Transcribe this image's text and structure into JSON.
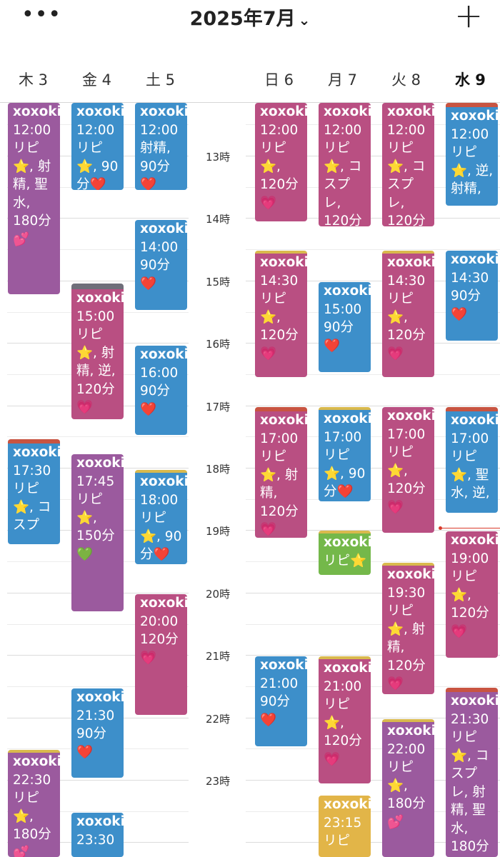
{
  "header": {
    "title": "2025年7月",
    "chevron": "⌄",
    "more": "•••",
    "add": "+"
  },
  "days": [
    {
      "label": "木 3",
      "today": false
    },
    {
      "label": "金 4",
      "today": false
    },
    {
      "label": "土 5",
      "today": false
    },
    {
      "label": "日 6",
      "today": false
    },
    {
      "label": "月 7",
      "today": false
    },
    {
      "label": "火 8",
      "today": false
    },
    {
      "label": "水 9",
      "today": true
    }
  ],
  "hours": [
    "13時",
    "14時",
    "15時",
    "16時",
    "17時",
    "18時",
    "19時",
    "20時",
    "21時",
    "22時",
    "23時"
  ],
  "events": [
    {
      "day": 0,
      "color": "purple",
      "title": "xoxoki",
      "lines": [
        "12:00",
        "リピ",
        "⭐, 射",
        "精, 聖",
        "水,",
        "180分",
        "💕"
      ]
    },
    {
      "day": 0,
      "color": "blue",
      "title": "xoxoki",
      "lines": [
        "17:30",
        "リピ",
        "⭐, コ",
        "スプ"
      ]
    },
    {
      "day": 0,
      "color": "purple",
      "title": "xoxoki",
      "lines": [
        "22:30",
        "リピ",
        "⭐,",
        "180分",
        "💕"
      ]
    },
    {
      "day": 1,
      "color": "blue",
      "title": "xoxoki",
      "lines": [
        "12:00",
        "リピ",
        "⭐, 90",
        "分❤️"
      ]
    },
    {
      "day": 1,
      "color": "pink",
      "title": "xoxoki",
      "lines": [
        "15:00",
        "リピ",
        "⭐, 射",
        "精, 逆,",
        "120分",
        "💗"
      ]
    },
    {
      "day": 1,
      "color": "purple",
      "title": "xoxoki",
      "lines": [
        "17:45",
        "リピ",
        "⭐,",
        "150分",
        "💚"
      ]
    },
    {
      "day": 1,
      "color": "blue",
      "title": "xoxoki",
      "lines": [
        "21:30",
        "90分",
        "❤️"
      ]
    },
    {
      "day": 1,
      "color": "blue",
      "title": "xoxoki",
      "lines": [
        "23:30"
      ]
    },
    {
      "day": 2,
      "color": "blue",
      "title": "xoxoki",
      "lines": [
        "12:00",
        "射精,",
        "90分",
        "❤️"
      ]
    },
    {
      "day": 2,
      "color": "blue",
      "title": "xoxoki",
      "lines": [
        "14:00",
        "90分",
        "❤️"
      ]
    },
    {
      "day": 2,
      "color": "blue",
      "title": "xoxoki",
      "lines": [
        "16:00",
        "90分",
        "❤️"
      ]
    },
    {
      "day": 2,
      "color": "blue",
      "title": "xoxoki",
      "lines": [
        "18:00",
        "リピ",
        "⭐, 90",
        "分❤️"
      ]
    },
    {
      "day": 2,
      "color": "pink",
      "title": "xoxoki",
      "lines": [
        "20:00",
        "120分",
        "💗"
      ]
    },
    {
      "day": 3,
      "color": "pink",
      "title": "xoxoki",
      "lines": [
        "12:00",
        "リピ",
        "⭐,",
        "120分",
        "💗"
      ]
    },
    {
      "day": 3,
      "color": "pink",
      "title": "xoxoki",
      "lines": [
        "14:30",
        "リピ",
        "⭐,",
        "120分",
        "💗"
      ]
    },
    {
      "day": 3,
      "color": "pink",
      "title": "xoxoki",
      "lines": [
        "17:00",
        "リピ",
        "⭐, 射",
        "精,",
        "120分",
        "💗"
      ]
    },
    {
      "day": 3,
      "color": "blue",
      "title": "xoxoki",
      "lines": [
        "21:00",
        "90分",
        "❤️"
      ]
    },
    {
      "day": 4,
      "color": "pink",
      "title": "xoxoki",
      "lines": [
        "12:00",
        "リピ",
        "⭐, コ",
        "スプ",
        "レ,",
        "120分"
      ]
    },
    {
      "day": 4,
      "color": "blue",
      "title": "xoxoki",
      "lines": [
        "15:00",
        "90分",
        "❤️"
      ]
    },
    {
      "day": 4,
      "color": "blue",
      "title": "xoxoki",
      "lines": [
        "17:00",
        "リピ",
        "⭐, 90",
        "分❤️"
      ]
    },
    {
      "day": 4,
      "color": "green",
      "title": "xoxoki",
      "lines": [
        "リピ⭐"
      ]
    },
    {
      "day": 4,
      "color": "pink",
      "title": "xoxoki",
      "lines": [
        "21:00",
        "リピ",
        "⭐,",
        "120分",
        "💗"
      ]
    },
    {
      "day": 4,
      "color": "yellow",
      "title": "xoxoki",
      "lines": [
        "23:15",
        "リピ"
      ]
    },
    {
      "day": 5,
      "color": "pink",
      "title": "xoxoki",
      "lines": [
        "12:00",
        "リピ",
        "⭐, コ",
        "スプ",
        "レ,",
        "120分"
      ]
    },
    {
      "day": 5,
      "color": "pink",
      "title": "xoxoki",
      "lines": [
        "14:30",
        "リピ",
        "⭐,",
        "120分",
        "💗"
      ]
    },
    {
      "day": 5,
      "color": "pink",
      "title": "xoxoki",
      "lines": [
        "17:00",
        "リピ",
        "⭐,",
        "120分",
        "💗"
      ]
    },
    {
      "day": 5,
      "color": "pink",
      "title": "xoxoki",
      "lines": [
        "19:30",
        "リピ",
        "⭐, 射",
        "精,",
        "120分",
        "💗"
      ]
    },
    {
      "day": 5,
      "color": "purple",
      "title": "xoxoki",
      "lines": [
        "22:00",
        "リピ",
        "⭐,",
        "180分",
        "💕"
      ]
    },
    {
      "day": 6,
      "color": "blue",
      "title": "xoxoki",
      "lines": [
        "12:00",
        "リピ",
        "⭐, 逆,",
        "射精,"
      ]
    },
    {
      "day": 6,
      "color": "blue",
      "title": "xoxoki",
      "lines": [
        "14:30",
        "90分",
        "❤️"
      ]
    },
    {
      "day": 6,
      "color": "blue",
      "title": "xoxoki",
      "lines": [
        "17:00",
        "リピ",
        "⭐, 聖",
        "水, 逆,"
      ]
    },
    {
      "day": 6,
      "color": "pink",
      "title": "xoxoki",
      "lines": [
        "19:00",
        "リピ",
        "⭐,",
        "120分",
        "💗"
      ]
    },
    {
      "day": 6,
      "color": "purple",
      "title": "xoxoki",
      "lines": [
        "21:30",
        "リピ",
        "⭐, コ",
        "スプ",
        "レ, 射",
        "精, 聖",
        "水,",
        "180分"
      ]
    }
  ]
}
